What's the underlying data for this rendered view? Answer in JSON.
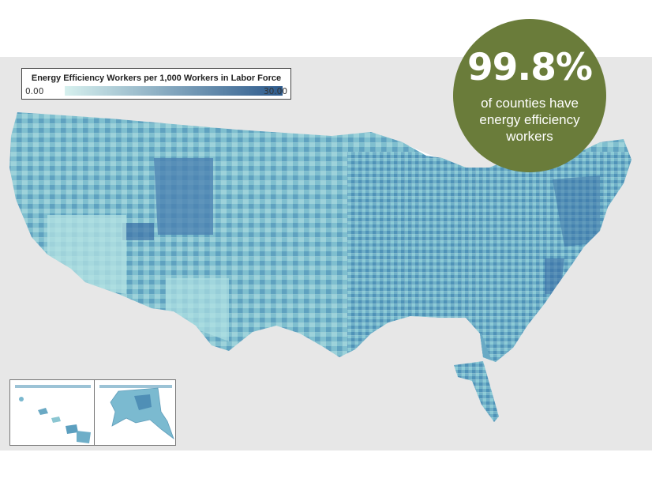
{
  "legend": {
    "title": "Energy Efficiency Workers per 1,000 Workers in Labor Force",
    "min_label": "0.00",
    "max_label": "30.00",
    "range": [
      0,
      30
    ]
  },
  "callout": {
    "stat": "99.8%",
    "text": "of counties have energy efficiency workers"
  },
  "colors": {
    "brand": "#6a7c3a",
    "scale_low": "#d6f0ee",
    "scale_high": "#2d5a8c",
    "land_other": "#e6e6e6",
    "water": "#ffffff",
    "county_border": "#8fb7c8"
  }
}
